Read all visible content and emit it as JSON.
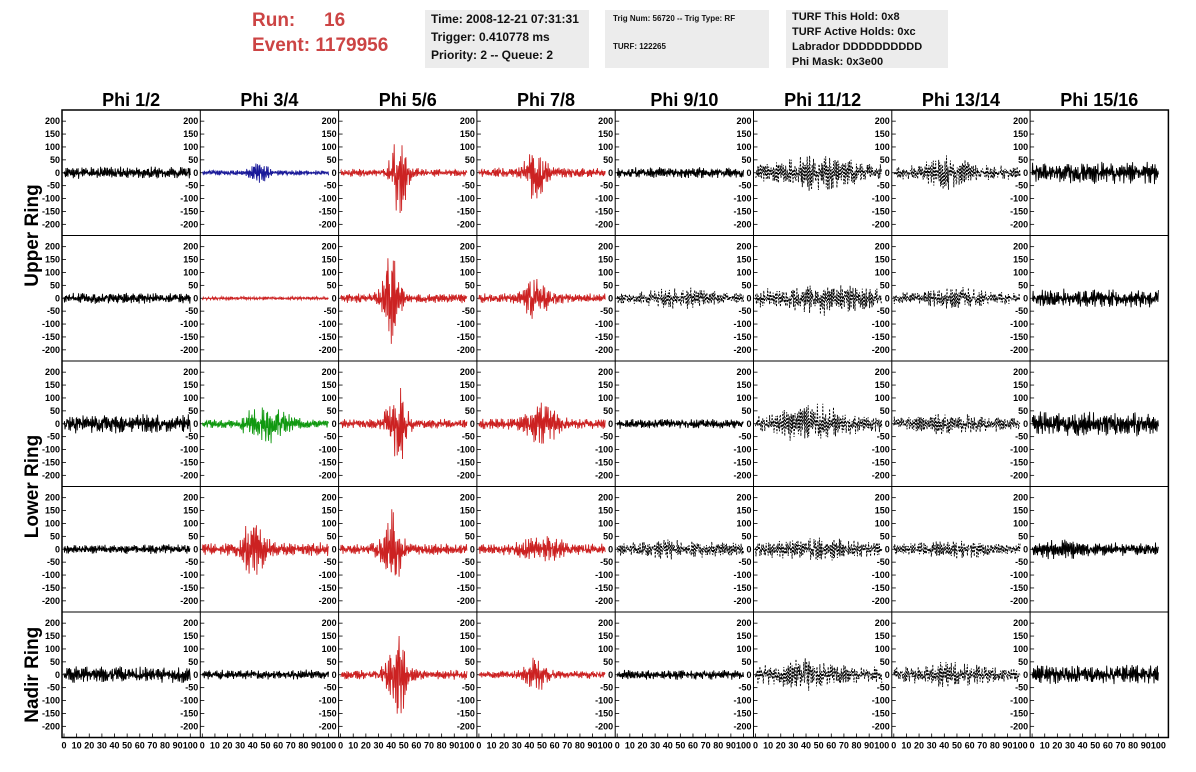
{
  "header": {
    "run_label": "Run:",
    "run_value": "16",
    "event_label": "Event:",
    "event_value": "1179956"
  },
  "info_time": {
    "line1": "Time: 2008-12-21 07:31:31",
    "line2": "Trigger: 0.410778 ms",
    "line3": "Priority: 2 -- Queue: 2"
  },
  "info_trig": {
    "line1": "Trig Num: 56720 -- Trig Type: RF",
    "line2": "TURF: 122265"
  },
  "info_turf": {
    "line1": "TURF This Hold: 0x8",
    "line2": "TURF Active Holds: 0xc",
    "line3": "Labrador DDDDDDDDDD",
    "line4": "Phi Mask: 0x3e00"
  },
  "colors": {
    "normal": "#000000",
    "red": "#cc2222",
    "blue": "#1a1a99",
    "green": "#119911"
  },
  "chart_data": {
    "type": "line",
    "columns": [
      "Phi 1/2",
      "Phi 3/4",
      "Phi 5/6",
      "Phi 7/8",
      "Phi 9/10",
      "Phi 11/12",
      "Phi 13/14",
      "Phi 15/16"
    ],
    "row_labels": [
      "Upper Ring",
      "Lower Ring",
      "Nadir Ring"
    ],
    "y_ticks": [
      200,
      150,
      100,
      50,
      0,
      -50,
      -100,
      -150,
      -200
    ],
    "ylim": [
      -220,
      220
    ],
    "x_ticks": [
      0,
      10,
      20,
      30,
      40,
      50,
      60,
      70,
      80,
      90,
      100
    ],
    "xlim": [
      0,
      100
    ],
    "panel_rows": 5,
    "traces": [
      [
        {
          "color": "normal",
          "style": "solid",
          "amp": 22,
          "burst_amp": 0,
          "burst_center": 0,
          "burst_width": 10,
          "seed": 11
        },
        {
          "color": "blue",
          "style": "solid",
          "amp": 10,
          "burst_amp": 30,
          "burst_center": 45,
          "burst_width": 8,
          "seed": 12
        },
        {
          "color": "red",
          "style": "solid",
          "amp": 15,
          "burst_amp": 150,
          "burst_center": 47,
          "burst_width": 7,
          "seed": 13
        },
        {
          "color": "red",
          "style": "solid",
          "amp": 18,
          "burst_amp": 90,
          "burst_center": 45,
          "burst_width": 8,
          "seed": 14
        },
        {
          "color": "normal",
          "style": "solid",
          "amp": 20,
          "burst_amp": 0,
          "burst_center": 0,
          "burst_width": 10,
          "seed": 15
        },
        {
          "color": "normal",
          "style": "dashed",
          "amp": 30,
          "burst_amp": 40,
          "burst_center": 50,
          "burst_width": 30,
          "seed": 16
        },
        {
          "color": "normal",
          "style": "dashed",
          "amp": 25,
          "burst_amp": 40,
          "burst_center": 45,
          "burst_width": 20,
          "seed": 17
        },
        {
          "color": "normal",
          "style": "solid",
          "amp": 40,
          "burst_amp": 0,
          "burst_center": 0,
          "burst_width": 10,
          "seed": 18
        }
      ],
      [
        {
          "color": "normal",
          "style": "solid",
          "amp": 20,
          "burst_amp": 0,
          "burst_center": 0,
          "burst_width": 10,
          "seed": 21
        },
        {
          "color": "red",
          "style": "solid",
          "amp": 6,
          "burst_amp": 0,
          "burst_center": 0,
          "burst_width": 10,
          "seed": 22
        },
        {
          "color": "red",
          "style": "solid",
          "amp": 18,
          "burst_amp": 160,
          "burst_center": 40,
          "burst_width": 7,
          "seed": 23
        },
        {
          "color": "red",
          "style": "solid",
          "amp": 18,
          "burst_amp": 70,
          "burst_center": 45,
          "burst_width": 10,
          "seed": 24
        },
        {
          "color": "normal",
          "style": "dashed",
          "amp": 20,
          "burst_amp": 20,
          "burst_center": 50,
          "burst_width": 25,
          "seed": 25
        },
        {
          "color": "normal",
          "style": "dashed",
          "amp": 35,
          "burst_amp": 30,
          "burst_center": 55,
          "burst_width": 25,
          "seed": 26
        },
        {
          "color": "normal",
          "style": "dashed",
          "amp": 22,
          "burst_amp": 20,
          "burst_center": 50,
          "burst_width": 25,
          "seed": 27
        },
        {
          "color": "normal",
          "style": "solid",
          "amp": 35,
          "burst_amp": 0,
          "burst_center": 0,
          "burst_width": 10,
          "seed": 28
        }
      ],
      [
        {
          "color": "normal",
          "style": "solid",
          "amp": 35,
          "burst_amp": 0,
          "burst_center": 0,
          "burst_width": 10,
          "seed": 31
        },
        {
          "color": "green",
          "style": "solid",
          "amp": 15,
          "burst_amp": 60,
          "burst_center": 50,
          "burst_width": 18,
          "seed": 32
        },
        {
          "color": "red",
          "style": "solid",
          "amp": 18,
          "burst_amp": 140,
          "burst_center": 45,
          "burst_width": 8,
          "seed": 33
        },
        {
          "color": "red",
          "style": "solid",
          "amp": 20,
          "burst_amp": 70,
          "burst_center": 50,
          "burst_width": 12,
          "seed": 34
        },
        {
          "color": "normal",
          "style": "solid",
          "amp": 18,
          "burst_amp": 0,
          "burst_center": 0,
          "burst_width": 10,
          "seed": 35
        },
        {
          "color": "normal",
          "style": "dashed",
          "amp": 30,
          "burst_amp": 50,
          "burst_center": 45,
          "burst_width": 25,
          "seed": 36
        },
        {
          "color": "normal",
          "style": "dashed",
          "amp": 25,
          "burst_amp": 20,
          "burst_center": 50,
          "burst_width": 25,
          "seed": 37
        },
        {
          "color": "normal",
          "style": "solid",
          "amp": 45,
          "burst_amp": 0,
          "burst_center": 0,
          "burst_width": 10,
          "seed": 38
        }
      ],
      [
        {
          "color": "normal",
          "style": "solid",
          "amp": 18,
          "burst_amp": 0,
          "burst_center": 0,
          "burst_width": 10,
          "seed": 41
        },
        {
          "color": "red",
          "style": "solid",
          "amp": 25,
          "burst_amp": 90,
          "burst_center": 40,
          "burst_width": 10,
          "seed": 42
        },
        {
          "color": "red",
          "style": "solid",
          "amp": 20,
          "burst_amp": 150,
          "burst_center": 40,
          "burst_width": 8,
          "seed": 43
        },
        {
          "color": "red",
          "style": "solid",
          "amp": 20,
          "burst_amp": 30,
          "burst_center": 50,
          "burst_width": 20,
          "seed": 44
        },
        {
          "color": "normal",
          "style": "dashed",
          "amp": 25,
          "burst_amp": 15,
          "burst_center": 50,
          "burst_width": 25,
          "seed": 45
        },
        {
          "color": "normal",
          "style": "dashed",
          "amp": 30,
          "burst_amp": 15,
          "burst_center": 50,
          "burst_width": 25,
          "seed": 46
        },
        {
          "color": "normal",
          "style": "dashed",
          "amp": 22,
          "burst_amp": 15,
          "burst_center": 50,
          "burst_width": 25,
          "seed": 47
        },
        {
          "color": "normal",
          "style": "solid",
          "amp": 25,
          "burst_amp": 20,
          "burst_center": 25,
          "burst_width": 15,
          "seed": 48
        }
      ],
      [
        {
          "color": "normal",
          "style": "solid",
          "amp": 30,
          "burst_amp": 0,
          "burst_center": 0,
          "burst_width": 10,
          "seed": 51
        },
        {
          "color": "normal",
          "style": "solid",
          "amp": 18,
          "burst_amp": 0,
          "burst_center": 0,
          "burst_width": 10,
          "seed": 52
        },
        {
          "color": "red",
          "style": "solid",
          "amp": 18,
          "burst_amp": 170,
          "burst_center": 45,
          "burst_width": 8,
          "seed": 53
        },
        {
          "color": "red",
          "style": "solid",
          "amp": 15,
          "burst_amp": 60,
          "burst_center": 45,
          "burst_width": 8,
          "seed": 54
        },
        {
          "color": "normal",
          "style": "solid",
          "amp": 18,
          "burst_amp": 0,
          "burst_center": 0,
          "burst_width": 10,
          "seed": 55
        },
        {
          "color": "normal",
          "style": "dashed",
          "amp": 30,
          "burst_amp": 30,
          "burst_center": 40,
          "burst_width": 25,
          "seed": 56
        },
        {
          "color": "normal",
          "style": "dashed",
          "amp": 28,
          "burst_amp": 20,
          "burst_center": 45,
          "burst_width": 25,
          "seed": 57
        },
        {
          "color": "normal",
          "style": "solid",
          "amp": 35,
          "burst_amp": 0,
          "burst_center": 0,
          "burst_width": 10,
          "seed": 58
        }
      ]
    ]
  }
}
